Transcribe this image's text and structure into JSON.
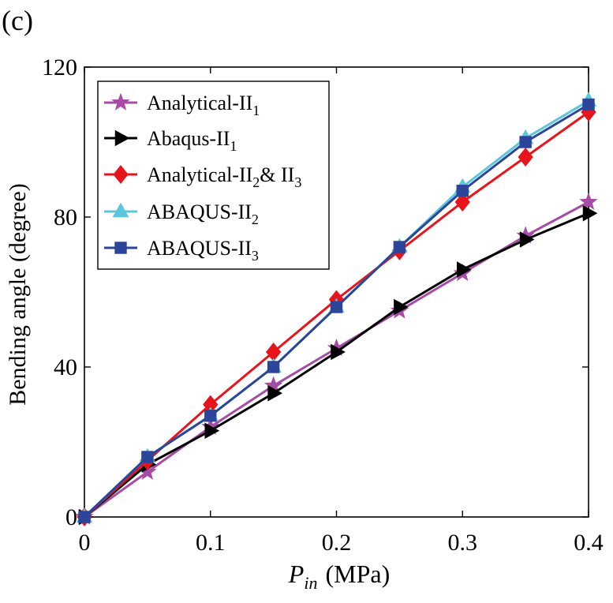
{
  "panel_label": "(c)",
  "chart_data": {
    "type": "line",
    "xlabel_main": "P",
    "xlabel_sub": "in",
    "xlabel_unit": "(MPa)",
    "ylabel": "Bending angle (degree)",
    "xlim": [
      0,
      0.4
    ],
    "ylim": [
      0,
      120
    ],
    "x_ticks": [
      0,
      0.1,
      0.2,
      0.3,
      0.4
    ],
    "x_tick_labels": [
      "0",
      "0.1",
      "0.2",
      "0.3",
      "0.4"
    ],
    "y_ticks": [
      0,
      40,
      80,
      120
    ],
    "y_tick_labels": [
      "0",
      "40",
      "80",
      "120"
    ],
    "grid": false,
    "legend_position": "top-left",
    "x": [
      0,
      0.05,
      0.1,
      0.15,
      0.2,
      0.25,
      0.3,
      0.35,
      0.4
    ],
    "series": [
      {
        "legend_base": "Analytical-II",
        "legend_sub": "1",
        "legend_rest": "",
        "legend_sub2": "",
        "color": "#a64ca6",
        "marker": "star",
        "values": [
          0,
          12,
          24,
          35,
          45,
          55,
          65,
          75,
          84
        ]
      },
      {
        "legend_base": "Abaqus-II",
        "legend_sub": "1",
        "legend_rest": "",
        "legend_sub2": "",
        "color": "#000000",
        "marker": "triangle-right",
        "values": [
          0,
          14,
          23,
          33,
          44,
          56,
          66,
          74,
          81
        ]
      },
      {
        "legend_base": "Analytical-II",
        "legend_sub": "2",
        "legend_rest": "& II",
        "legend_sub2": "3",
        "color": "#e8141c",
        "marker": "diamond",
        "values": [
          0,
          15,
          30,
          44,
          58,
          71,
          84,
          96,
          108
        ]
      },
      {
        "legend_base": "ABAQUS-II",
        "legend_sub": "2",
        "legend_rest": "",
        "legend_sub2": "",
        "color": "#5bc6dc",
        "marker": "triangle-up",
        "values": [
          0,
          16,
          27,
          40,
          56,
          72,
          88,
          101,
          111
        ]
      },
      {
        "legend_base": "ABAQUS-II",
        "legend_sub": "3",
        "legend_rest": "",
        "legend_sub2": "",
        "color": "#2b459b",
        "marker": "square",
        "values": [
          0,
          16,
          27,
          40,
          56,
          72,
          87,
          100,
          110
        ]
      }
    ]
  }
}
